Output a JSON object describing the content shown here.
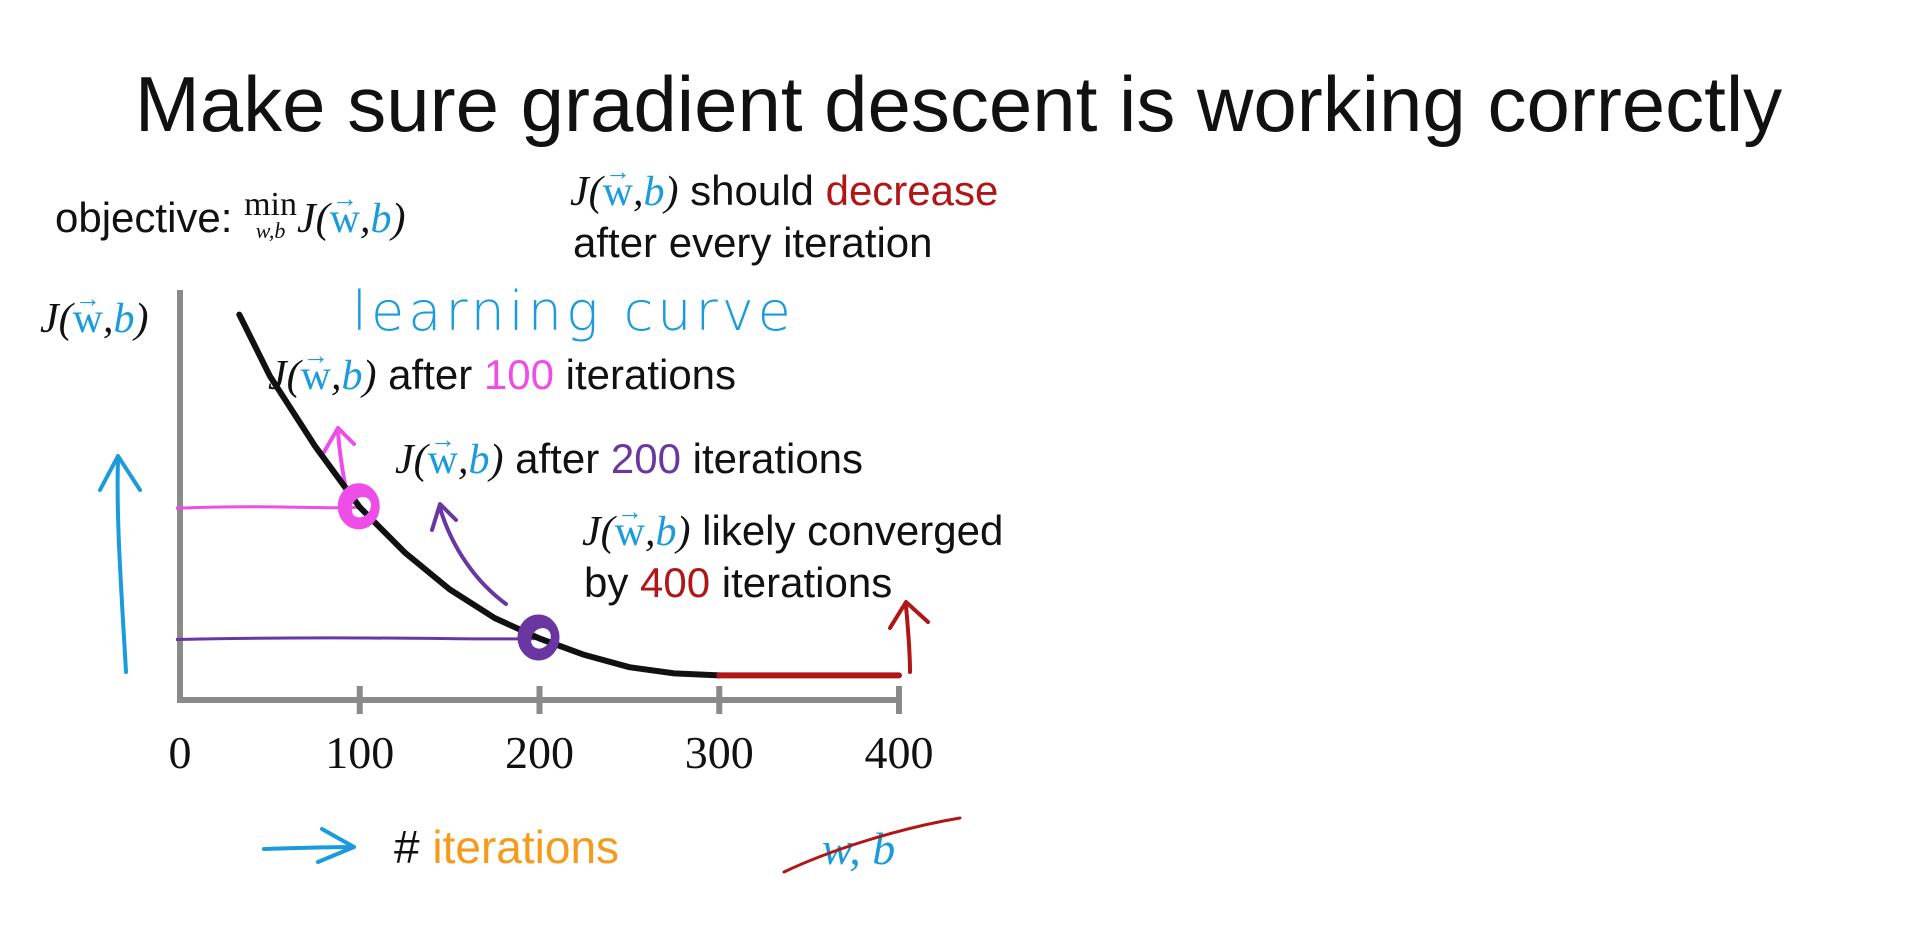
{
  "slide": {
    "title": "Make sure gradient descent is working correctly",
    "objective_label": "objective:",
    "objective_min": "min",
    "objective_min_sub": "w,b",
    "cost_J": "J(",
    "cost_w": "w",
    "cost_comma": ",",
    "cost_b": "b",
    "cost_close": ")",
    "should_text": " should ",
    "decrease_text": "decrease",
    "every_iter_text": "after every iteration",
    "learning_curve_label": "learning curve",
    "after_text": " after ",
    "iterations_text": " iterations",
    "ann_100_value": "100",
    "ann_200_value": "200",
    "likely_text": " likely converged",
    "by_text": "by ",
    "ann_400_value": "400",
    "xlabel_hash": "#",
    "xlabel_text": "iterations",
    "crossed_wb": "w, b"
  },
  "chart_data": {
    "type": "line",
    "xlabel": "# iterations",
    "ylabel": "J(w,b)",
    "xlim": [
      0,
      400
    ],
    "x_ticks": [
      "0",
      "100",
      "200",
      "300",
      "400"
    ],
    "series": [
      {
        "x": [
          33,
          50,
          75,
          100,
          125,
          150,
          175,
          200,
          225,
          250,
          275,
          300
        ],
        "y": [
          0.94,
          0.79,
          0.62,
          0.47,
          0.36,
          0.27,
          0.2,
          0.15,
          0.11,
          0.08,
          0.065,
          0.06
        ]
      }
    ],
    "converged_segment": {
      "x": [
        300,
        400
      ],
      "y": 0.06
    },
    "markers": [
      {
        "x": 100,
        "y": 0.47,
        "label_value": "100"
      },
      {
        "x": 200,
        "y": 0.15,
        "label_value": "200"
      }
    ],
    "colors": {
      "curve": "#111111",
      "axes": "#8a8a8a",
      "marker_100": "#ee4de7",
      "marker_200": "#6a36a2",
      "converged": "#b11616",
      "accent_blue": "#1a9bdc",
      "xlabel_orange": "#f49b1c"
    }
  }
}
